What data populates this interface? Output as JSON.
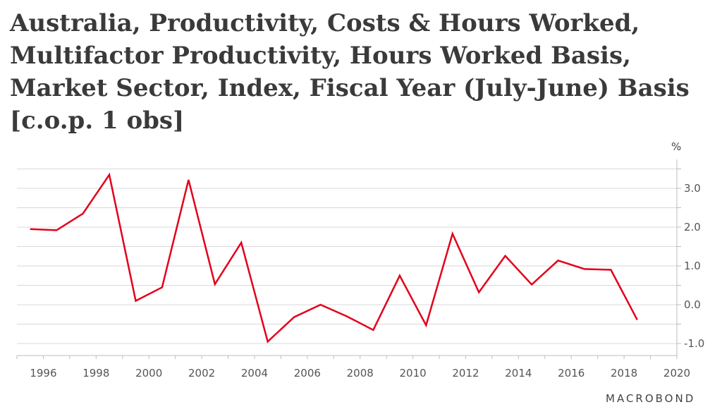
{
  "chart_data": {
    "type": "line",
    "title": "Australia, Productivity, Costs & Hours Worked, Multifactor Productivity, Hours Worked Basis, Market Sector, Index, Fiscal Year (July-June) Basis [c.o.p. 1 obs]",
    "unit": "%",
    "xlim": [
      1995,
      2020
    ],
    "ylim": [
      -1.3,
      3.5
    ],
    "x_ticks": [
      "1996",
      "1998",
      "2000",
      "2002",
      "2004",
      "2006",
      "2008",
      "2010",
      "2012",
      "2014",
      "2016",
      "2018",
      "2020"
    ],
    "y_ticks": [
      "3.0",
      "2.0",
      "1.0",
      "0.0",
      "-1.0"
    ],
    "grid": true,
    "series": [
      {
        "name": "",
        "color": "#e3001b",
        "x": [
          1995.5,
          1996.5,
          1997.5,
          1998.5,
          1999.5,
          2000.5,
          2001.5,
          2002.5,
          2003.5,
          2004.5,
          2005.5,
          2006.5,
          2007.5,
          2008.5,
          2009.5,
          2010.5,
          2011.5,
          2012.5,
          2013.5,
          2014.5,
          2015.5,
          2016.5,
          2017.5,
          2018.5
        ],
        "y": [
          1.95,
          1.92,
          2.35,
          3.35,
          0.1,
          0.45,
          3.22,
          0.53,
          1.6,
          -0.95,
          -0.32,
          0.0,
          -0.3,
          -0.65,
          0.75,
          -0.53,
          1.83,
          0.32,
          1.26,
          0.52,
          1.14,
          0.92,
          0.9,
          -0.39
        ]
      }
    ]
  },
  "brand": "MACROBOND"
}
